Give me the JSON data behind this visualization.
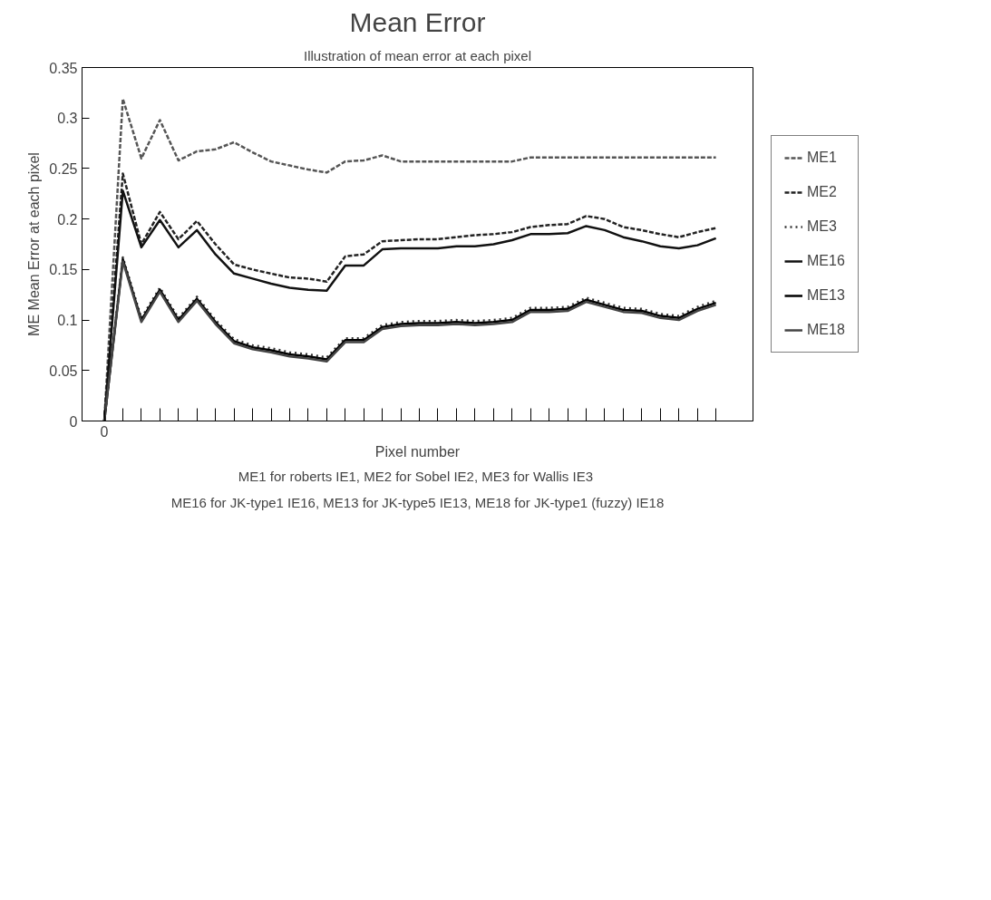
{
  "chart_data": {
    "type": "line",
    "title": "Mean Error",
    "subtitle": "Illustration of mean error at each pixel",
    "xlabel": "Pixel number",
    "ylabel": "ME Mean Error at each pixel",
    "categories": [
      "0",
      null,
      null,
      null,
      null,
      null,
      null,
      null,
      null,
      null,
      null,
      null,
      null,
      null,
      null,
      null,
      null,
      null,
      null,
      null,
      null,
      null,
      null,
      null,
      null,
      null,
      null,
      null,
      null,
      null,
      null,
      null,
      null,
      null
    ],
    "series": [
      {
        "name": "ME1",
        "color": "#555555",
        "line_style": "dashed",
        "values": [
          0,
          0.319,
          0.26,
          0.298,
          0.258,
          0.267,
          0.269,
          0.276,
          0.266,
          0.257,
          0.253,
          0.249,
          0.246,
          0.257,
          0.258,
          0.263,
          0.257,
          0.257,
          0.257,
          0.257,
          0.257,
          0.257,
          0.257,
          0.261,
          0.261,
          0.261,
          0.261,
          0.261,
          0.261,
          0.261,
          0.261,
          0.261,
          0.261,
          0.261
        ]
      },
      {
        "name": "ME2",
        "color": "#222222",
        "line_style": "dashed",
        "values": [
          0,
          0.245,
          0.175,
          0.207,
          0.18,
          0.198,
          0.175,
          0.155,
          0.15,
          0.146,
          0.142,
          0.141,
          0.138,
          0.163,
          0.165,
          0.178,
          0.179,
          0.18,
          0.18,
          0.182,
          0.184,
          0.185,
          0.187,
          0.192,
          0.194,
          0.195,
          0.203,
          0.2,
          0.192,
          0.189,
          0.185,
          0.182,
          0.187,
          0.191
        ]
      },
      {
        "name": "ME3",
        "color": "#333333",
        "line_style": "dotted",
        "values": [
          0,
          0.162,
          0.102,
          0.132,
          0.102,
          0.123,
          0.1,
          0.081,
          0.075,
          0.072,
          0.068,
          0.066,
          0.063,
          0.082,
          0.082,
          0.095,
          0.098,
          0.099,
          0.099,
          0.1,
          0.099,
          0.1,
          0.102,
          0.112,
          0.112,
          0.113,
          0.122,
          0.117,
          0.112,
          0.111,
          0.106,
          0.104,
          0.113,
          0.119
        ]
      },
      {
        "name": "ME16",
        "color": "#111111",
        "line_style": "solid",
        "values": [
          0,
          0.228,
          0.172,
          0.199,
          0.172,
          0.189,
          0.165,
          0.146,
          0.141,
          0.136,
          0.132,
          0.13,
          0.129,
          0.154,
          0.154,
          0.17,
          0.171,
          0.171,
          0.171,
          0.173,
          0.173,
          0.175,
          0.179,
          0.185,
          0.185,
          0.186,
          0.193,
          0.189,
          0.182,
          0.178,
          0.173,
          0.171,
          0.174,
          0.181
        ]
      },
      {
        "name": "ME13",
        "color": "#000000",
        "line_style": "solid",
        "values": [
          0,
          0.16,
          0.1,
          0.13,
          0.1,
          0.121,
          0.098,
          0.079,
          0.073,
          0.07,
          0.066,
          0.064,
          0.061,
          0.08,
          0.08,
          0.093,
          0.096,
          0.097,
          0.097,
          0.098,
          0.097,
          0.098,
          0.1,
          0.11,
          0.11,
          0.111,
          0.12,
          0.115,
          0.11,
          0.109,
          0.104,
          0.102,
          0.111,
          0.117
        ]
      },
      {
        "name": "ME18",
        "color": "#444444",
        "line_style": "solid",
        "values": [
          0,
          0.158,
          0.098,
          0.128,
          0.098,
          0.119,
          0.096,
          0.077,
          0.071,
          0.068,
          0.064,
          0.062,
          0.059,
          0.078,
          0.078,
          0.091,
          0.094,
          0.095,
          0.095,
          0.096,
          0.095,
          0.096,
          0.098,
          0.108,
          0.108,
          0.109,
          0.118,
          0.113,
          0.108,
          0.107,
          0.102,
          0.1,
          0.109,
          0.115
        ]
      }
    ],
    "ylim": [
      0,
      0.35
    ],
    "yticks": [
      0,
      0.05,
      0.1,
      0.15,
      0.2,
      0.25,
      0.3,
      0.35
    ],
    "grid": false,
    "legend": "right",
    "annotations": [
      "ME1 for roberts IE1, ME2 for Sobel IE2,  ME3 for Wallis IE3",
      "ME16 for JK-type1 IE16, ME13 for JK-type5 IE13, ME18 for JK-type1 (fuzzy) IE18"
    ]
  }
}
